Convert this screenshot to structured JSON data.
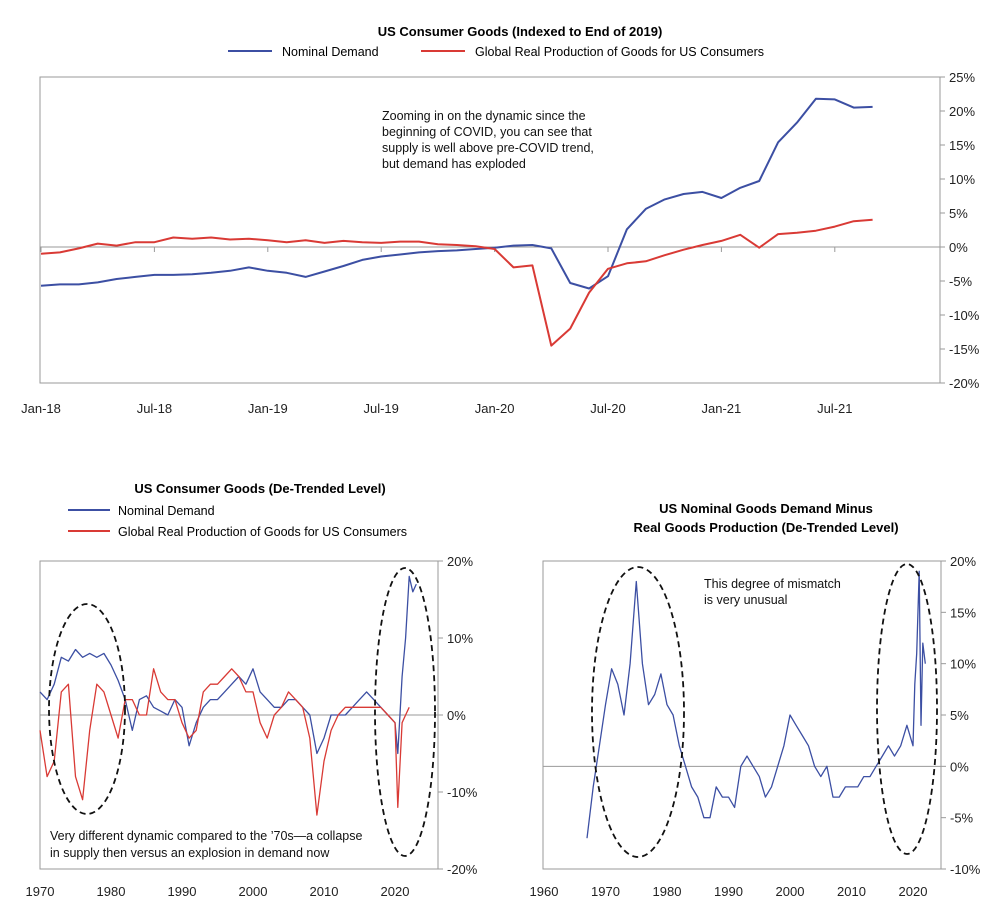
{
  "colors": {
    "nominal": "#3c4fa3",
    "production": "#d93a35",
    "frame": "#9a9a9a"
  },
  "chart_data": [
    {
      "type": "line",
      "title": "US Consumer Goods (Indexed to End of 2019)",
      "xlabel": "",
      "ylabel": "",
      "x_ticks": [
        "Jan-18",
        "Jul-18",
        "Jan-19",
        "Jul-19",
        "Jan-20",
        "Jul-20",
        "Jan-21",
        "Jul-21"
      ],
      "ylim": [
        -0.2,
        0.25
      ],
      "y_ticks": [
        "25%",
        "20%",
        "15%",
        "10%",
        "5%",
        "0%",
        "-5%",
        "-10%",
        "-15%",
        "-20%"
      ],
      "x_unit": "months since Jan-18",
      "series": [
        {
          "name": "Nominal Demand",
          "x": [
            0,
            1,
            2,
            3,
            4,
            5,
            6,
            7,
            8,
            9,
            10,
            11,
            12,
            13,
            14,
            15,
            16,
            17,
            18,
            19,
            20,
            21,
            22,
            23,
            24,
            25,
            26,
            27,
            28,
            29,
            30,
            31,
            32,
            33,
            34,
            35,
            36,
            37,
            38,
            39,
            40,
            41,
            42,
            43,
            44
          ],
          "values": [
            -0.057,
            -0.055,
            -0.055,
            -0.052,
            -0.047,
            -0.044,
            -0.041,
            -0.041,
            -0.04,
            -0.038,
            -0.035,
            -0.03,
            -0.035,
            -0.038,
            -0.044,
            -0.036,
            -0.028,
            -0.019,
            -0.014,
            -0.011,
            -0.008,
            -0.006,
            -0.005,
            -0.003,
            -0.001,
            0.002,
            0.003,
            -0.002,
            -0.053,
            -0.061,
            -0.043,
            0.026,
            0.056,
            0.07,
            0.078,
            0.081,
            0.072,
            0.087,
            0.097,
            0.154,
            0.183,
            0.218,
            0.217,
            0.205,
            0.206
          ]
        },
        {
          "name": "Global Real Production of Goods for US Consumers",
          "x": [
            0,
            1,
            2,
            3,
            4,
            5,
            6,
            7,
            8,
            9,
            10,
            11,
            12,
            13,
            14,
            15,
            16,
            17,
            18,
            19,
            20,
            21,
            22,
            23,
            24,
            25,
            26,
            27,
            28,
            29,
            30,
            31,
            32,
            33,
            34,
            35,
            36,
            37,
            38,
            39,
            40,
            41,
            42,
            43,
            44
          ],
          "values": [
            -0.01,
            -0.008,
            -0.002,
            0.005,
            0.002,
            0.007,
            0.007,
            0.014,
            0.012,
            0.014,
            0.011,
            0.012,
            0.01,
            0.007,
            0.01,
            0.006,
            0.009,
            0.007,
            0.006,
            0.008,
            0.008,
            0.004,
            0.003,
            0.001,
            -0.003,
            -0.03,
            -0.027,
            -0.145,
            -0.12,
            -0.067,
            -0.032,
            -0.024,
            -0.021,
            -0.012,
            -0.004,
            0.003,
            0.009,
            0.018,
            -0.001,
            0.019,
            0.021,
            0.024,
            0.03,
            0.038,
            0.04
          ]
        }
      ],
      "legend": "top-center",
      "annotation": "Zooming in on the dynamic since the beginning of COVID, you can see that supply is well above pre-COVID trend, but demand has exploded"
    },
    {
      "type": "line",
      "title": "US Consumer Goods (De-Trended Level)",
      "xlabel": "",
      "ylabel": "",
      "x_ticks": [
        "1970",
        "1980",
        "1990",
        "2000",
        "2010",
        "2020"
      ],
      "xlim": [
        1970,
        2025
      ],
      "ylim": [
        -0.2,
        0.2
      ],
      "y_ticks": [
        "20%",
        "10%",
        "0%",
        "-10%",
        "-20%"
      ],
      "series": [
        {
          "name": "Nominal Demand",
          "x": [
            1970,
            1971,
            1972,
            1973,
            1974,
            1975,
            1976,
            1977,
            1978,
            1979,
            1980,
            1981,
            1982,
            1983,
            1984,
            1985,
            1986,
            1987,
            1988,
            1989,
            1990,
            1991,
            1992,
            1993,
            1994,
            1995,
            1996,
            1997,
            1998,
            1999,
            2000,
            2001,
            2002,
            2003,
            2004,
            2005,
            2006,
            2007,
            2008,
            2009,
            2010,
            2011,
            2012,
            2013,
            2014,
            2015,
            2016,
            2017,
            2018,
            2019,
            2020,
            2020.4,
            2021,
            2021.5,
            2022,
            2022.5,
            2023
          ],
          "values": [
            0.03,
            0.02,
            0.04,
            0.075,
            0.07,
            0.085,
            0.075,
            0.08,
            0.075,
            0.08,
            0.065,
            0.045,
            0.02,
            -0.02,
            0.02,
            0.025,
            0.01,
            0.005,
            0.0,
            0.02,
            0.01,
            -0.04,
            -0.01,
            0.01,
            0.02,
            0.02,
            0.03,
            0.04,
            0.05,
            0.04,
            0.06,
            0.03,
            0.02,
            0.01,
            0.01,
            0.02,
            0.02,
            0.01,
            0.0,
            -0.05,
            -0.03,
            0.0,
            0.0,
            0.0,
            0.01,
            0.02,
            0.03,
            0.02,
            0.01,
            0.0,
            -0.01,
            -0.05,
            0.05,
            0.1,
            0.18,
            0.16,
            0.17
          ]
        },
        {
          "name": "Global Real Production of Goods for US Consumers",
          "x": [
            1970,
            1971,
            1972,
            1973,
            1974,
            1975,
            1976,
            1977,
            1978,
            1979,
            1980,
            1981,
            1982,
            1983,
            1984,
            1985,
            1986,
            1987,
            1988,
            1989,
            1990,
            1991,
            1992,
            1993,
            1994,
            1995,
            1996,
            1997,
            1998,
            1999,
            2000,
            2001,
            2002,
            2003,
            2004,
            2005,
            2006,
            2007,
            2008,
            2009,
            2010,
            2011,
            2012,
            2013,
            2014,
            2015,
            2016,
            2017,
            2018,
            2019,
            2020,
            2020.4,
            2021,
            2021.5,
            2022
          ],
          "values": [
            -0.02,
            -0.08,
            -0.06,
            0.03,
            0.04,
            -0.08,
            -0.11,
            -0.02,
            0.04,
            0.03,
            0.0,
            -0.03,
            0.02,
            0.02,
            0.0,
            0.0,
            0.06,
            0.03,
            0.02,
            0.02,
            -0.01,
            -0.03,
            -0.02,
            0.03,
            0.04,
            0.04,
            0.05,
            0.06,
            0.05,
            0.03,
            0.03,
            -0.01,
            -0.03,
            0.0,
            0.01,
            0.03,
            0.02,
            0.01,
            -0.03,
            -0.13,
            -0.06,
            -0.02,
            0.0,
            0.01,
            0.01,
            0.01,
            0.01,
            0.01,
            0.01,
            0.0,
            -0.01,
            -0.12,
            -0.01,
            0.0,
            0.01
          ]
        }
      ],
      "legend": "top-left",
      "annotation": "Very different dynamic compared to the '70s—a collapse in supply then versus an explosion in demand now"
    },
    {
      "type": "line",
      "title": "US Nominal Goods Demand Minus Real Goods Production (De-Trended Level)",
      "xlabel": "",
      "ylabel": "",
      "x_ticks": [
        "1960",
        "1970",
        "1980",
        "1990",
        "2000",
        "2010",
        "2020"
      ],
      "xlim": [
        1960,
        2024
      ],
      "ylim": [
        -0.1,
        0.2
      ],
      "y_ticks": [
        "20%",
        "15%",
        "10%",
        "5%",
        "0%",
        "-5%",
        "-10%"
      ],
      "series": [
        {
          "name": "",
          "x": [
            1967,
            1968,
            1969,
            1970,
            1971,
            1972,
            1973,
            1974,
            1975,
            1976,
            1977,
            1978,
            1979,
            1980,
            1981,
            1982,
            1983,
            1984,
            1985,
            1986,
            1987,
            1988,
            1989,
            1990,
            1991,
            1992,
            1993,
            1994,
            1995,
            1996,
            1997,
            1998,
            1999,
            2000,
            2001,
            2002,
            2003,
            2004,
            2005,
            2006,
            2007,
            2008,
            2009,
            2010,
            2011,
            2012,
            2013,
            2014,
            2015,
            2016,
            2017,
            2018,
            2019,
            2020,
            2020.3,
            2020.6,
            2021,
            2021.3,
            2021.6,
            2022
          ],
          "values": [
            -0.07,
            -0.02,
            0.02,
            0.06,
            0.095,
            0.08,
            0.05,
            0.1,
            0.18,
            0.1,
            0.06,
            0.07,
            0.09,
            0.06,
            0.05,
            0.02,
            0.0,
            -0.02,
            -0.03,
            -0.05,
            -0.05,
            -0.02,
            -0.03,
            -0.03,
            -0.04,
            0.0,
            0.01,
            0.0,
            -0.01,
            -0.03,
            -0.02,
            0.0,
            0.02,
            0.05,
            0.04,
            0.03,
            0.02,
            0.0,
            -0.01,
            0.0,
            -0.03,
            -0.03,
            -0.02,
            -0.02,
            -0.02,
            -0.01,
            -0.01,
            0.0,
            0.01,
            0.02,
            0.01,
            0.02,
            0.04,
            0.02,
            0.08,
            0.11,
            0.19,
            0.04,
            0.12,
            0.1
          ]
        }
      ],
      "annotation": "This degree of mismatch is very unusual"
    }
  ],
  "legend": {
    "nominal": "Nominal Demand",
    "production": "Global Real Production of Goods for US Consumers"
  },
  "titles": {
    "top": "US Consumer Goods (Indexed to End of 2019)",
    "bottom_left": "US Consumer Goods (De-Trended Level)",
    "bottom_right_line1": "US Nominal Goods Demand Minus",
    "bottom_right_line2": "Real Goods Production (De-Trended Level)"
  },
  "annotations": {
    "top": [
      "Zooming in on the dynamic since the",
      "beginning of COVID, you can see that",
      "supply is well above pre-COVID trend,",
      "but demand has exploded"
    ],
    "bottom_left": [
      "Very different dynamic compared to the ’70s—a collapse",
      "in supply then versus an explosion in demand now"
    ],
    "bottom_right": [
      "This degree of mismatch",
      "is very unusual"
    ]
  }
}
